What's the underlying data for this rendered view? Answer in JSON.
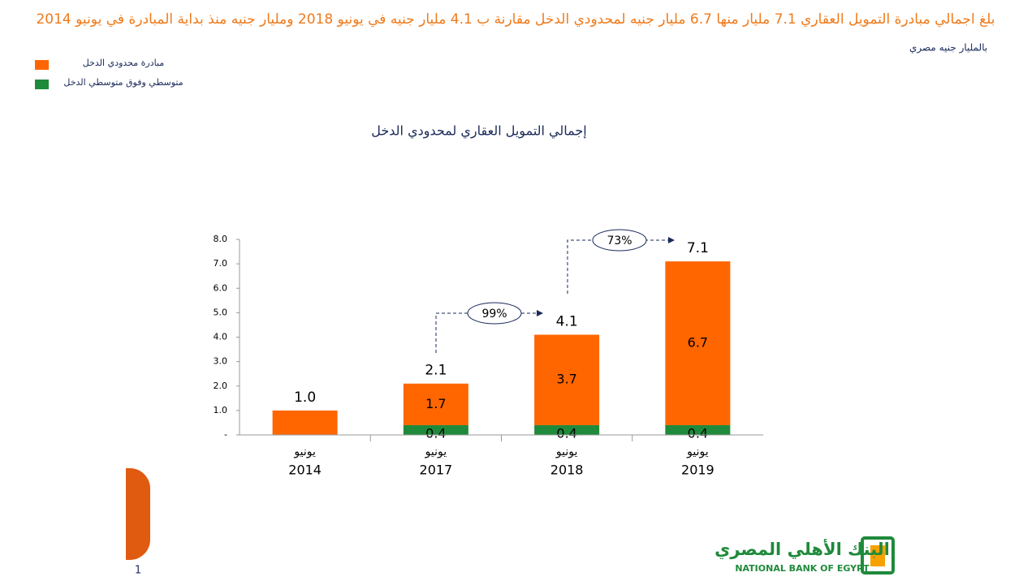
{
  "header": {
    "title": "بلغ اجمالي مبادرة التمويل العقاري 7.1 مليار منها 6.7 مليار جنيه لمحدودي الدخل مقارنة ب 4.1 مليار جنيه في يونيو 2018 ومليار جنيه منذ بداية المبادرة في يونيو 2014",
    "unit": "بالمليار جنيه مصري"
  },
  "chart_data": {
    "type": "stacked-bar",
    "title": "إجمالي التمويل العقاري لمحدودي الدخل",
    "categories": [
      [
        "يونيو",
        "2014"
      ],
      [
        "يونيو",
        "2017"
      ],
      [
        "يونيو",
        "2018"
      ],
      [
        "يونيو",
        "2019"
      ]
    ],
    "series": [
      {
        "name": "متوسطي وفوق متوسطي الدخل",
        "color": "#1f8a3b",
        "values": [
          0,
          0.4,
          0.4,
          0.4
        ],
        "value_labels": [
          "-",
          "0.4",
          "0.4",
          "0.4"
        ]
      },
      {
        "name": "مبادرة محدودي الدخل",
        "color": "#ff6600",
        "values": [
          1.0,
          1.7,
          3.7,
          6.7
        ],
        "value_labels": [
          null,
          "1.7",
          "3.7",
          "6.7"
        ]
      }
    ],
    "totals": {
      "values": [
        1.0,
        2.1,
        4.1,
        7.1
      ],
      "value_labels": [
        "1.0",
        "2.1",
        "4.1",
        "7.1"
      ]
    },
    "growth_annotations": [
      "99%",
      "73%"
    ],
    "ylim": [
      0,
      8
    ],
    "yticks": [
      {
        "value": 0,
        "label": "-"
      },
      {
        "value": 1,
        "label": "1.0"
      },
      {
        "value": 2,
        "label": "2.0"
      },
      {
        "value": 3,
        "label": "3.0"
      },
      {
        "value": 4,
        "label": "4.0"
      },
      {
        "value": 5,
        "label": "5.0"
      },
      {
        "value": 6,
        "label": "6.0"
      },
      {
        "value": 7,
        "label": "7.0"
      },
      {
        "value": 8,
        "label": "8.0"
      }
    ]
  },
  "footer": {
    "page_number": "1",
    "bank_name_ar": "البنك الأهلي المصري",
    "bank_name_en": "NATIONAL BANK OF EGYPT"
  }
}
